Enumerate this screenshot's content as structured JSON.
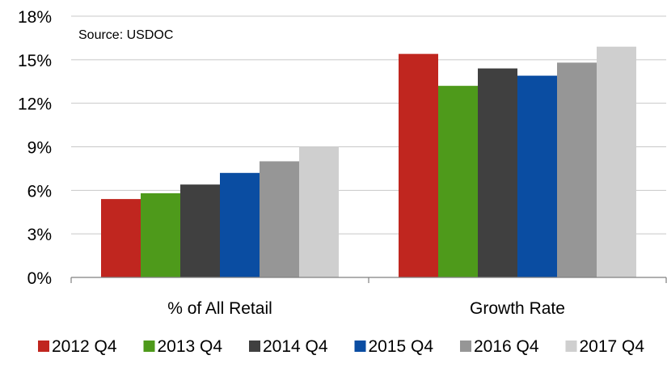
{
  "chart_data": {
    "type": "bar",
    "annotation": "Source: USDOC",
    "categories": [
      "% of All Retail",
      "Growth Rate"
    ],
    "series": [
      {
        "name": "2012 Q4",
        "color": "#c0261f",
        "values": [
          5.4,
          15.4
        ]
      },
      {
        "name": "2013 Q4",
        "color": "#4e9a1b",
        "values": [
          5.8,
          13.2
        ]
      },
      {
        "name": "2014 Q4",
        "color": "#404040",
        "values": [
          6.4,
          14.4
        ]
      },
      {
        "name": "2015 Q4",
        "color": "#0a4da2",
        "values": [
          7.2,
          13.9
        ]
      },
      {
        "name": "2016 Q4",
        "color": "#969696",
        "values": [
          8.0,
          14.8
        ]
      },
      {
        "name": "2017 Q4",
        "color": "#cfcfcf",
        "values": [
          9.0,
          15.9
        ]
      }
    ],
    "y_ticks": [
      "0%",
      "3%",
      "6%",
      "9%",
      "12%",
      "15%",
      "18%"
    ],
    "ylim": [
      0,
      18
    ],
    "xlabel": "",
    "ylabel": "",
    "grid": true,
    "legend_position": "bottom",
    "gridline_color": "#c8c8c8",
    "axis_color": "#808080"
  }
}
